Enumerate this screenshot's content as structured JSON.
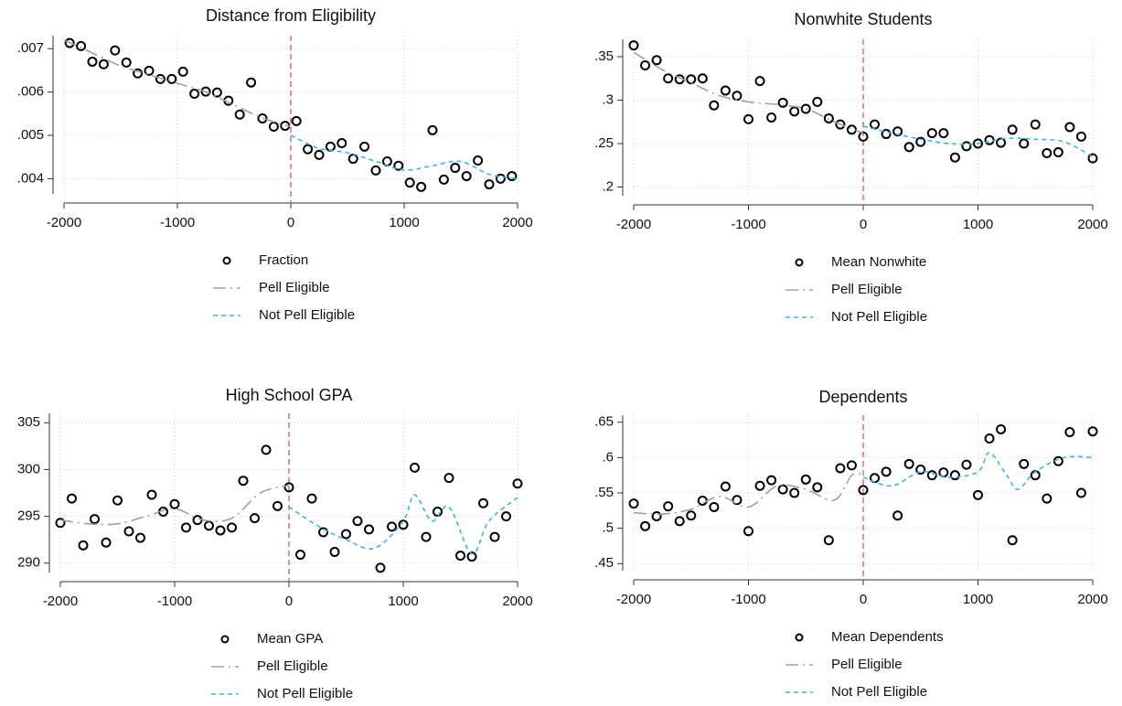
{
  "chart_data": [
    {
      "type": "scatter",
      "title": "Distance from Eligibility",
      "vline": 0,
      "grid": true,
      "xlim": [
        -2000,
        2000
      ],
      "xticks": [
        -2000,
        -1000,
        0,
        1000,
        2000
      ],
      "ylim": [
        0.00365,
        0.0073
      ],
      "yticks": [
        {
          "value": 0.004,
          "label": ".004"
        },
        {
          "value": 0.005,
          "label": ".005"
        },
        {
          "value": 0.006,
          "label": ".006"
        },
        {
          "value": 0.007,
          "label": ".007"
        }
      ],
      "series": [
        {
          "name": "Fraction",
          "marker": "circle",
          "color": "#000000",
          "x": [
            -1950,
            -1850,
            -1750,
            -1650,
            -1550,
            -1450,
            -1350,
            -1250,
            -1150,
            -1050,
            -950,
            -850,
            -750,
            -650,
            -550,
            -450,
            -350,
            -250,
            -150,
            -50,
            50,
            150,
            250,
            350,
            450,
            550,
            650,
            750,
            850,
            950,
            1050,
            1150,
            1250,
            1350,
            1450,
            1550,
            1650,
            1750,
            1850,
            1950
          ],
          "values": [
            0.00713,
            0.00706,
            0.0067,
            0.00664,
            0.00696,
            0.00668,
            0.00643,
            0.00649,
            0.0063,
            0.0063,
            0.00647,
            0.00596,
            0.00601,
            0.00599,
            0.0058,
            0.00548,
            0.00622,
            0.00539,
            0.0052,
            0.00522,
            0.00533,
            0.00468,
            0.00455,
            0.00474,
            0.00482,
            0.00446,
            0.00474,
            0.00419,
            0.0044,
            0.0043,
            0.00391,
            0.00381,
            0.00512,
            0.00398,
            0.00425,
            0.00406,
            0.00442,
            0.00387,
            0.004,
            0.00406
          ]
        },
        {
          "name": "Pell Eligible",
          "marker": "longdash",
          "color": "#a0a0a0",
          "x": [
            -2000,
            -1750,
            -1500,
            -1250,
            -1000,
            -750,
            -500,
            -250,
            0
          ],
          "values": [
            0.0072,
            0.0069,
            0.0066,
            0.0064,
            0.0062,
            0.006,
            0.0057,
            0.0054,
            0.0052
          ]
        },
        {
          "name": "Not Pell Eligible",
          "marker": "dash",
          "color": "#3cb4e6",
          "x": [
            0,
            250,
            500,
            750,
            1000,
            1250,
            1500,
            1750,
            2000
          ],
          "values": [
            0.005,
            0.0047,
            0.0046,
            0.0044,
            0.0042,
            0.0043,
            0.0044,
            0.0041,
            0.004
          ]
        }
      ]
    },
    {
      "type": "scatter",
      "title": "Nonwhite Students",
      "vline": 0,
      "grid": true,
      "xlim": [
        -2000,
        2000
      ],
      "xticks": [
        -2000,
        -1000,
        0,
        1000,
        2000
      ],
      "ylim": [
        0.19,
        0.37
      ],
      "yticks": [
        {
          "value": 0.2,
          "label": ".2"
        },
        {
          "value": 0.25,
          "label": ".25"
        },
        {
          "value": 0.3,
          "label": ".3"
        },
        {
          "value": 0.35,
          "label": ".35"
        }
      ],
      "series": [
        {
          "name": "Mean Nonwhite",
          "marker": "circle",
          "color": "#000000",
          "x": [
            -2000,
            -1900,
            -1800,
            -1700,
            -1600,
            -1500,
            -1400,
            -1300,
            -1200,
            -1100,
            -1000,
            -900,
            -800,
            -700,
            -600,
            -500,
            -400,
            -300,
            -200,
            -100,
            0,
            100,
            200,
            300,
            400,
            500,
            600,
            700,
            800,
            900,
            1000,
            1100,
            1200,
            1300,
            1400,
            1500,
            1600,
            1700,
            1800,
            1900,
            2000
          ],
          "values": [
            0.363,
            0.34,
            0.346,
            0.325,
            0.324,
            0.324,
            0.325,
            0.294,
            0.311,
            0.305,
            0.278,
            0.322,
            0.28,
            0.297,
            0.287,
            0.29,
            0.298,
            0.279,
            0.272,
            0.266,
            0.258,
            0.272,
            0.261,
            0.264,
            0.246,
            0.252,
            0.262,
            0.262,
            0.234,
            0.247,
            0.25,
            0.254,
            0.251,
            0.266,
            0.25,
            0.272,
            0.239,
            0.24,
            0.269,
            0.258,
            0.233
          ]
        },
        {
          "name": "Pell Eligible",
          "marker": "longdash",
          "color": "#a0a0a0",
          "x": [
            -2000,
            -1750,
            -1500,
            -1250,
            -1000,
            -750,
            -500,
            -250,
            0
          ],
          "values": [
            0.355,
            0.335,
            0.32,
            0.305,
            0.298,
            0.295,
            0.29,
            0.275,
            0.262
          ]
        },
        {
          "name": "Not Pell Eligible",
          "marker": "dash",
          "color": "#3cb4e6",
          "x": [
            0,
            250,
            500,
            750,
            1000,
            1250,
            1500,
            1750,
            2000
          ],
          "values": [
            0.27,
            0.262,
            0.255,
            0.25,
            0.25,
            0.256,
            0.255,
            0.252,
            0.235
          ]
        }
      ]
    },
    {
      "type": "scatter",
      "title": "High School GPA",
      "vline": 0,
      "grid": true,
      "xlim": [
        -2000,
        2000
      ],
      "xticks": [
        -2000,
        -1000,
        0,
        1000,
        2000
      ],
      "ylim": [
        289,
        306
      ],
      "yticks": [
        290,
        295,
        300,
        305
      ],
      "series": [
        {
          "name": "Mean GPA",
          "marker": "circle",
          "color": "#000000",
          "x": [
            -2000,
            -1900,
            -1800,
            -1700,
            -1600,
            -1500,
            -1400,
            -1300,
            -1200,
            -1100,
            -1000,
            -900,
            -800,
            -700,
            -600,
            -500,
            -400,
            -300,
            -200,
            -100,
            0,
            100,
            200,
            300,
            400,
            500,
            600,
            700,
            800,
            900,
            1000,
            1100,
            1200,
            1300,
            1400,
            1500,
            1600,
            1700,
            1800,
            1900,
            2000
          ],
          "values": [
            294.3,
            296.9,
            291.9,
            294.7,
            292.2,
            296.7,
            293.4,
            292.7,
            297.3,
            295.5,
            296.3,
            293.8,
            294.6,
            294,
            293.5,
            293.8,
            298.8,
            294.8,
            302.1,
            296.1,
            298.1,
            290.9,
            296.9,
            293.3,
            291.2,
            293.1,
            294.5,
            293.6,
            289.5,
            293.9,
            294.1,
            300.2,
            292.8,
            295.5,
            299.1,
            290.8,
            290.7,
            296.4,
            292.8,
            295,
            298.5
          ]
        },
        {
          "name": "Pell Eligible",
          "marker": "longdash",
          "color": "#a0a0a0",
          "x": [
            -2000,
            -1750,
            -1500,
            -1250,
            -1000,
            -750,
            -500,
            -250,
            0
          ],
          "values": [
            294.6,
            294.2,
            294.2,
            295,
            295.8,
            294.6,
            294.8,
            297.5,
            298.3
          ]
        },
        {
          "name": "Not Pell Eligible",
          "marker": "dash",
          "color": "#3cb4e6",
          "x": [
            0,
            250,
            500,
            750,
            1000,
            1100,
            1250,
            1400,
            1600,
            1750,
            2000
          ],
          "values": [
            296,
            294,
            292.5,
            291.6,
            294.5,
            297.3,
            294.5,
            296,
            291,
            294.5,
            297
          ]
        }
      ]
    },
    {
      "type": "scatter",
      "title": "Dependents",
      "vline": 0,
      "grid": true,
      "xlim": [
        -2000,
        2000
      ],
      "xticks": [
        -2000,
        -1000,
        0,
        1000,
        2000
      ],
      "ylim": [
        0.44,
        0.66
      ],
      "yticks": [
        {
          "value": 0.45,
          "label": ".45"
        },
        {
          "value": 0.5,
          "label": ".5"
        },
        {
          "value": 0.55,
          "label": ".55"
        },
        {
          "value": 0.6,
          "label": ".6"
        },
        {
          "value": 0.65,
          "label": ".65"
        }
      ],
      "series": [
        {
          "name": "Mean Dependents",
          "marker": "circle",
          "color": "#000000",
          "x": [
            -2000,
            -1900,
            -1800,
            -1700,
            -1600,
            -1500,
            -1400,
            -1300,
            -1200,
            -1100,
            -1000,
            -900,
            -800,
            -700,
            -600,
            -500,
            -400,
            -300,
            -200,
            -100,
            0,
            100,
            200,
            300,
            400,
            500,
            600,
            700,
            800,
            900,
            1000,
            1100,
            1200,
            1300,
            1400,
            1500,
            1600,
            1700,
            1800,
            1900,
            2000
          ],
          "values": [
            0.535,
            0.503,
            0.517,
            0.531,
            0.51,
            0.518,
            0.539,
            0.53,
            0.559,
            0.54,
            0.496,
            0.56,
            0.568,
            0.555,
            0.55,
            0.569,
            0.558,
            0.483,
            0.585,
            0.589,
            0.554,
            0.571,
            0.58,
            0.518,
            0.591,
            0.583,
            0.575,
            0.579,
            0.575,
            0.59,
            0.547,
            0.627,
            0.64,
            0.483,
            0.591,
            0.575,
            0.542,
            0.595,
            0.636,
            0.55,
            0.637
          ]
        },
        {
          "name": "Pell Eligible",
          "marker": "longdash",
          "color": "#a0a0a0",
          "x": [
            -2000,
            -1750,
            -1500,
            -1250,
            -1000,
            -750,
            -500,
            -250,
            -100,
            0
          ],
          "values": [
            0.522,
            0.52,
            0.527,
            0.545,
            0.53,
            0.56,
            0.555,
            0.54,
            0.575,
            0.575
          ]
        },
        {
          "name": "Not Pell Eligible",
          "marker": "dash",
          "color": "#3cb4e6",
          "x": [
            0,
            250,
            500,
            750,
            1000,
            1100,
            1250,
            1350,
            1500,
            1750,
            2000
          ],
          "values": [
            0.572,
            0.56,
            0.58,
            0.572,
            0.58,
            0.607,
            0.575,
            0.555,
            0.58,
            0.6,
            0.6
          ]
        }
      ]
    }
  ]
}
